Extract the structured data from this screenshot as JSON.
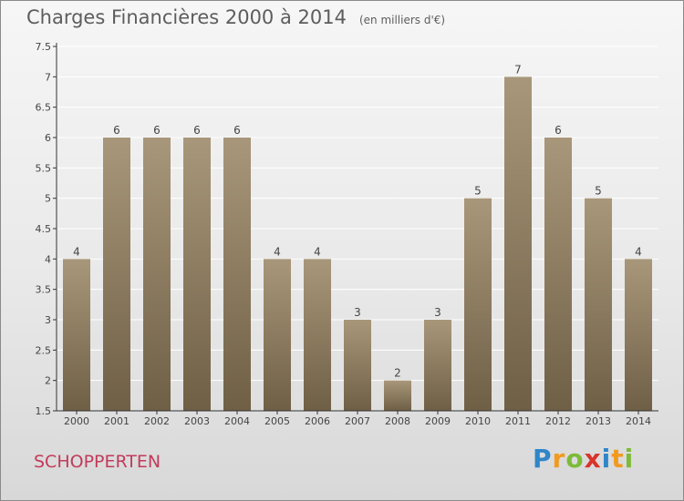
{
  "title": "Charges Financières 2000 à 2014",
  "subtitle": "(en milliers d'€)",
  "commune": "SCHOPPERTEN",
  "logo": {
    "p": "P",
    "r": "r",
    "o": "o",
    "x": "x",
    "i1": "i",
    "t": "t",
    "i2": "i"
  },
  "colors": {
    "bar_top": "#a8977a",
    "bar_bottom": "#6f5f45",
    "axis": "#333333",
    "grid": "#ffffff"
  },
  "chart_data": {
    "type": "bar",
    "categories": [
      "2000",
      "2001",
      "2002",
      "2003",
      "2004",
      "2005",
      "2006",
      "2007",
      "2008",
      "2009",
      "2010",
      "2011",
      "2012",
      "2013",
      "2014"
    ],
    "values": [
      4,
      6,
      6,
      6,
      6,
      4,
      4,
      3,
      2,
      3,
      5,
      7,
      6,
      5,
      4
    ],
    "value_labels": [
      "4",
      "6",
      "6",
      "6",
      "6",
      "4",
      "4",
      "3",
      "2",
      "3",
      "5",
      "7",
      "6",
      "5",
      "4"
    ],
    "ylim": [
      1.5,
      7.5
    ],
    "yticks": [
      "1.5",
      "2",
      "2.5",
      "3",
      "3.5",
      "4",
      "4.5",
      "5",
      "5.5",
      "6",
      "6.5",
      "7",
      "7.5"
    ],
    "grid": true
  }
}
